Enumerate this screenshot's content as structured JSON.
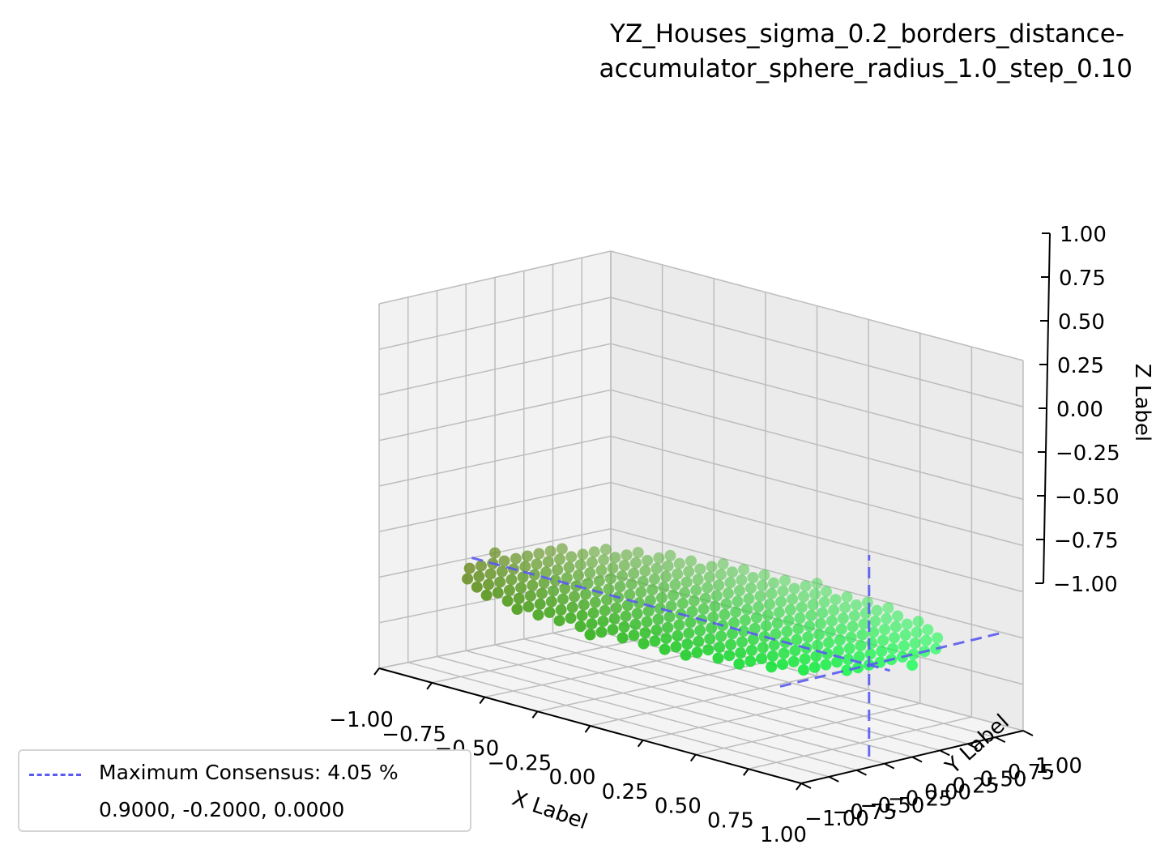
{
  "chart_data": {
    "type": "scatter3d",
    "title": "YZ_Houses_sigma_0.2_borders_distance-\naccumulator_sphere_radius_1.0_step_0.10",
    "title_lines": [
      "YZ_Houses_sigma_0.2_borders_distance-",
      "accumulator_sphere_radius_1.0_step_0.10"
    ],
    "xlabel": "X Label",
    "ylabel": "Y Label",
    "zlabel": "Z Label",
    "xlim": [
      -1.0,
      1.0
    ],
    "ylim": [
      -1.0,
      1.0
    ],
    "zlim": [
      -1.0,
      1.0
    ],
    "x_ticks": [
      "−1.00",
      "−0.75",
      "−0.50",
      "−0.25",
      "0.00",
      "0.25",
      "0.50",
      "0.75",
      "1.00"
    ],
    "y_ticks": [
      "−1.00",
      "−0.75",
      "−0.50",
      "−0.25",
      "0.00",
      "0.25",
      "0.50",
      "0.75",
      "1.00"
    ],
    "z_ticks": [
      "−1.00",
      "−0.75",
      "−0.50",
      "−0.25",
      "0.00",
      "0.25",
      "0.50",
      "0.75",
      "1.00"
    ],
    "grid": true,
    "points": {
      "description_of_set": "grid of points with x,y in [-1,1] step 0.1 inside the unit disk, on the plane z = -0.5",
      "step": 0.1,
      "radius": 1.0,
      "z": -0.5,
      "color_dark": "#6b8e23",
      "color_bright": "#00ff44"
    },
    "consensus_lines": {
      "center": [
        0.9,
        -0.2,
        -0.5
      ],
      "color": "#5a5af0",
      "style": "dashed"
    },
    "legend": {
      "label": "Maximum Consensus: 4.05 %",
      "note": "0.9000, -0.2000, 0.0000",
      "placement": "lower-left"
    }
  }
}
